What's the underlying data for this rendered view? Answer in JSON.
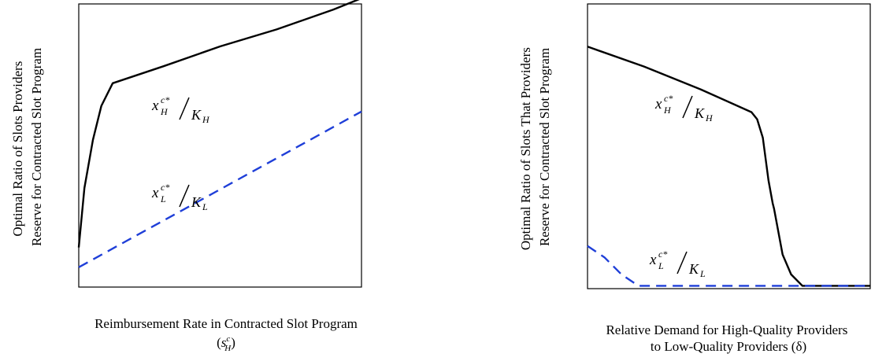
{
  "chart_data": [
    {
      "type": "line",
      "xlabel": "Reimbursement Rate in Contracted Slot Program",
      "xlabel_symbol": {
        "base": "s",
        "sub": "H",
        "sup": "c"
      },
      "ylabel": [
        "Optimal Ratio of Slots Providers",
        "Reserve for Contracted Slot Program"
      ],
      "xlim": [
        0,
        1
      ],
      "ylim": [
        0,
        1
      ],
      "grid": false,
      "tick_labels": false,
      "series": [
        {
          "label": {
            "var": "x",
            "sub": "H",
            "sup": "c*",
            "den_var": "K",
            "den_sub": "H"
          },
          "color": "#000000",
          "dash": "solid",
          "x": [
            0,
            0.02,
            0.05,
            0.08,
            0.12,
            0.3,
            0.5,
            0.7,
            0.9,
            1.0
          ],
          "y": [
            0.14,
            0.35,
            0.52,
            0.64,
            0.72,
            0.78,
            0.85,
            0.91,
            0.98,
            1.02
          ]
        },
        {
          "label": {
            "var": "x",
            "sub": "L",
            "sup": "c*",
            "den_var": "K",
            "den_sub": "L"
          },
          "color": "#1f3fd8",
          "dash": "dashed",
          "x": [
            0,
            1.0
          ],
          "y": [
            0.07,
            0.62
          ]
        }
      ]
    },
    {
      "type": "line",
      "xlabel": [
        "Relative Demand for High-Quality Providers",
        "to Low-Quality Providers (δ)"
      ],
      "ylabel": [
        "Optimal Ratio of Slots That Providers",
        "Reserve for Contracted Slot Program"
      ],
      "xlim": [
        0,
        1
      ],
      "ylim": [
        0,
        1
      ],
      "grid": false,
      "tick_labels": false,
      "series": [
        {
          "label": {
            "var": "x",
            "sub": "H",
            "sup": "c*",
            "den_var": "K",
            "den_sub": "H"
          },
          "color": "#000000",
          "dash": "solid",
          "x": [
            0,
            0.2,
            0.4,
            0.58,
            0.6,
            0.62,
            0.64,
            0.655,
            0.66,
            0.675,
            0.69,
            0.72,
            0.76,
            0.8,
            1.0
          ],
          "y": [
            0.85,
            0.78,
            0.7,
            0.62,
            0.595,
            0.53,
            0.38,
            0.3,
            0.28,
            0.2,
            0.12,
            0.05,
            0.01,
            0.01,
            0.01
          ]
        },
        {
          "label": {
            "var": "x",
            "sub": "L",
            "sup": "c*",
            "den_var": "K",
            "den_sub": "L"
          },
          "color": "#1f3fd8",
          "dash": "dashed",
          "x": [
            0,
            0.06,
            0.12,
            0.18,
            0.25,
            0.5,
            0.75,
            1.0
          ],
          "y": [
            0.15,
            0.11,
            0.05,
            0.01,
            0.01,
            0.01,
            0.01,
            0.01
          ]
        }
      ]
    }
  ]
}
